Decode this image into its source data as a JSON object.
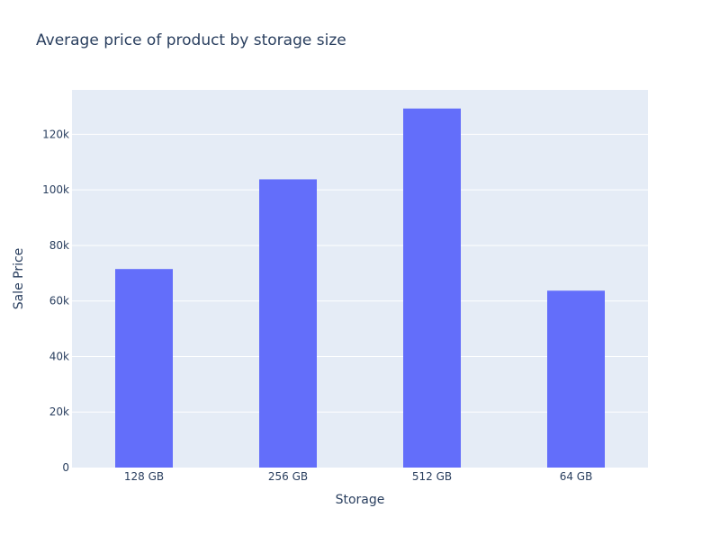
{
  "chart_data": {
    "type": "bar",
    "title": "Average price of product by storage size",
    "xlabel": "Storage",
    "ylabel": "Sale Price",
    "categories": [
      "128 GB",
      "256 GB",
      "512 GB",
      "64 GB"
    ],
    "values": [
      71500,
      103800,
      129300,
      63700
    ],
    "ylim": [
      0,
      136000
    ],
    "yticks": [
      0,
      20000,
      40000,
      60000,
      80000,
      100000,
      120000
    ],
    "ytick_labels": [
      "0",
      "20k",
      "40k",
      "60k",
      "80k",
      "100k",
      "120k"
    ],
    "grid": true,
    "colors": {
      "bar": "#636efa",
      "plot_bg": "#e5ecf6",
      "grid": "#ffffff",
      "text": "#2a3f5f"
    }
  }
}
